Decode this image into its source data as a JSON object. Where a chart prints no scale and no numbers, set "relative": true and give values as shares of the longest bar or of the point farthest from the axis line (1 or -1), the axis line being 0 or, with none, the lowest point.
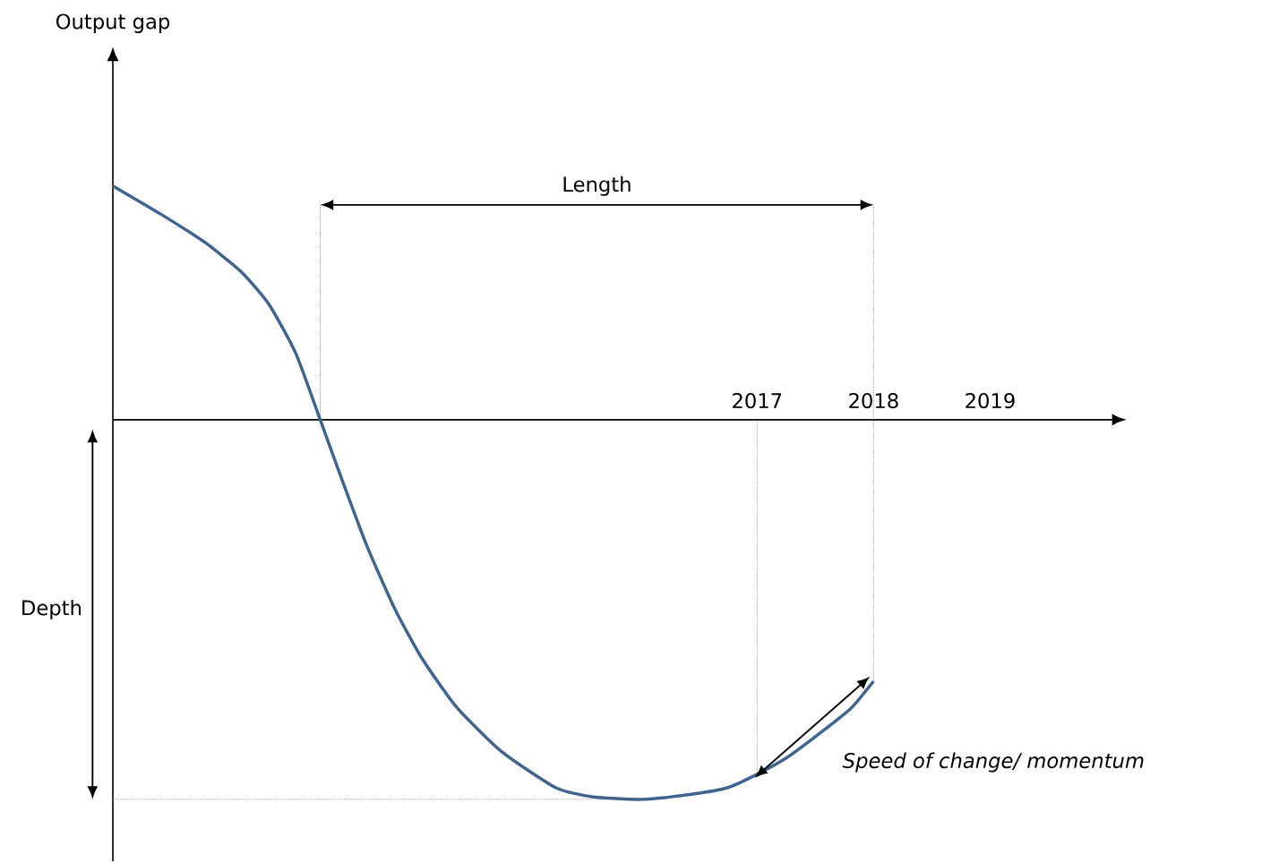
{
  "chart_data": {
    "type": "line",
    "relative": true,
    "x": [
      2011.47,
      2011.89,
      2012.27,
      2012.58,
      2012.81,
      2013.04,
      2013.25,
      2013.42,
      2013.65,
      2013.89,
      2014.12,
      2014.42,
      2014.81,
      2015.27,
      2015.58,
      2016.02,
      2016.45,
      2016.75,
      2017.0,
      2017.27,
      2017.58,
      2017.81,
      2018.0
    ],
    "series": [
      {
        "color": "#41648f",
        "values": [
          0.616,
          0.54,
          0.465,
          0.387,
          0.304,
          0.175,
          0,
          -0.144,
          -0.332,
          -0.498,
          -0.627,
          -0.757,
          -0.875,
          -0.969,
          -0.993,
          -1,
          -0.986,
          -0.969,
          -0.934,
          -0.887,
          -0.816,
          -0.759,
          -0.689
        ]
      }
    ],
    "xlim": [
      2011.47,
      2020.15
    ],
    "xticks": [
      2017,
      2018,
      2019
    ],
    "tick_labels": "x",
    "marker": "none",
    "line_style": "solid",
    "grid": false,
    "ref_lines": [
      {
        "axis": "x",
        "value": 2013.25,
        "line_style": "dotted"
      },
      {
        "axis": "x",
        "value": 2017,
        "line_style": "dotted"
      },
      {
        "axis": "x",
        "value": 2018,
        "line_style": "dotted"
      },
      {
        "axis": "y",
        "value": -1,
        "line_style": "dotted"
      }
    ],
    "annotations": [
      "Output gap",
      "Length",
      "Depth",
      "Speed of change/ momentum"
    ]
  }
}
